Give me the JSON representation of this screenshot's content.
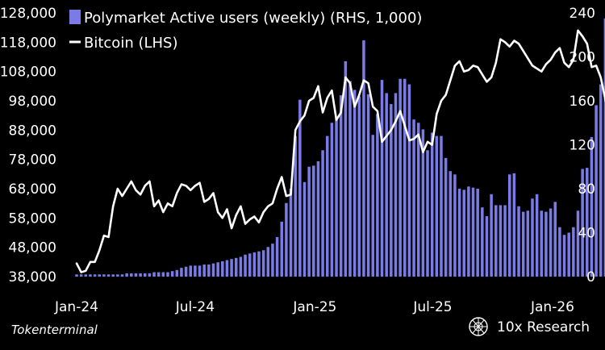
{
  "chart_data": {
    "type": "bar+line",
    "legend": {
      "placement": "top-left",
      "items": [
        {
          "label": "Polymarket Active users (weekly) (RHS, 1,000)",
          "color": "#7b7be8",
          "kind": "bar"
        },
        {
          "label": "Bitcoin (LHS)",
          "color": "#ffffff",
          "kind": "line"
        }
      ]
    },
    "left_axis": {
      "ticks": [
        "38,000",
        "48,000",
        "58,000",
        "68,000",
        "78,000",
        "88,000",
        "98,000",
        "108,000",
        "118,000",
        "128,000"
      ],
      "ylim": [
        38000,
        128000
      ]
    },
    "right_axis": {
      "ticks": [
        "0",
        "40",
        "80",
        "120",
        "160",
        "200",
        "240"
      ],
      "ylim": [
        0,
        240
      ]
    },
    "x_axis": {
      "ticks": [
        "Jan-24",
        "Jul-24",
        "Jan-25",
        "Jul-25",
        "Jan-26"
      ],
      "range": [
        "2024-01-01",
        "2026-01-01"
      ]
    },
    "series": [
      {
        "name": "Polymarket Active users (weekly) (RHS, 1,000)",
        "axis": "right",
        "start": "2024-01-01",
        "step_days": 7,
        "values": [
          2,
          2,
          2,
          2,
          2,
          2,
          2,
          2,
          2,
          2,
          2,
          3,
          3,
          3,
          3,
          3,
          3,
          4,
          4,
          4,
          4,
          5,
          6,
          8,
          9,
          10,
          10,
          10,
          11,
          11,
          12,
          13,
          14,
          15,
          16,
          17,
          18,
          20,
          21,
          22,
          23,
          24,
          27,
          30,
          36,
          50,
          67,
          80,
          128,
          161,
          86,
          100,
          101,
          105,
          115,
          128,
          140,
          145,
          165,
          196,
          178,
          170,
          164,
          215,
          166,
          129,
          148,
          179,
          167,
          157,
          167,
          180,
          180,
          175,
          143,
          140,
          134,
          115,
          131,
          128,
          128,
          108,
          96,
          93,
          80,
          79,
          82,
          81,
          80,
          63,
          55,
          75,
          65,
          65,
          65,
          93,
          94,
          64,
          59,
          60,
          71,
          75,
          60,
          59,
          62,
          68,
          45,
          38,
          40,
          45,
          60,
          98,
          99,
          127,
          156,
          175,
          235,
          227,
          222,
          202,
          205,
          219,
          212
        ]
      },
      {
        "name": "Bitcoin (LHS)",
        "axis": "left",
        "start": "2024-01-01",
        "step_days": 7,
        "values": [
          42500,
          39500,
          40000,
          43000,
          43000,
          47000,
          52000,
          51500,
          62000,
          68000,
          65500,
          68000,
          70500,
          67500,
          66000,
          69000,
          70500,
          62000,
          64000,
          60000,
          63000,
          62000,
          66500,
          69500,
          69000,
          67500,
          69000,
          70000,
          63500,
          64500,
          66500,
          60000,
          58000,
          61000,
          54500,
          59000,
          62000,
          56000,
          57500,
          58500,
          56500,
          60000,
          62000,
          63000,
          68000,
          72000,
          65500,
          66000,
          88000,
          91000,
          93000,
          98000,
          99000,
          103000,
          94000,
          99000,
          101500,
          91500,
          94000,
          106000,
          104000,
          96000,
          100000,
          105000,
          104000,
          96000,
          94500,
          84000,
          86000,
          88000,
          91000,
          94500,
          89500,
          84500,
          85000,
          86500,
          80500,
          84000,
          83000,
          93500,
          98000,
          100000,
          105000,
          110000,
          111500,
          108000,
          108500,
          110000,
          109500,
          107000,
          104500,
          106000,
          111000,
          119000,
          118000,
          116500,
          118500,
          117500,
          115000,
          112500,
          110000,
          109000,
          108000,
          110500,
          112000,
          114500,
          116000,
          111000,
          109500,
          112000,
          122000,
          120000,
          117500,
          109500,
          110000,
          106000,
          98500,
          91500,
          89000,
          88000,
          87000,
          86000,
          86500
        ]
      }
    ]
  },
  "source_label": "Tokenterminal",
  "brand_label": "10x Research"
}
